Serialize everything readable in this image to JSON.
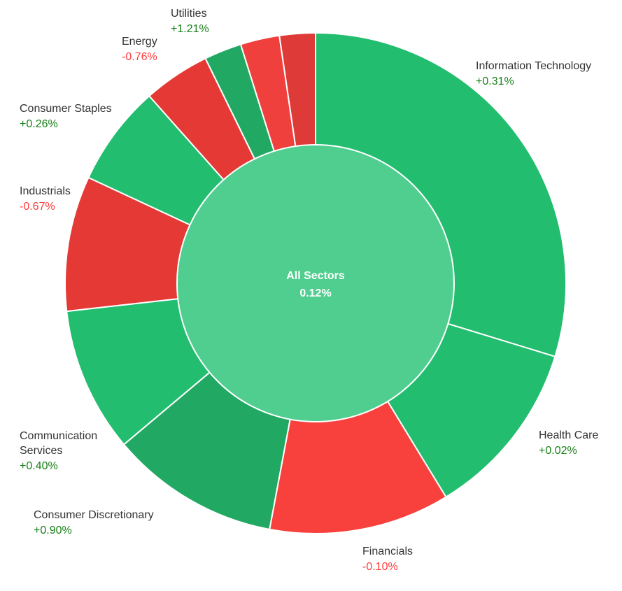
{
  "chart_data": {
    "type": "pie",
    "center": {
      "name": "All Sectors",
      "change": "0.12%"
    },
    "positive_colors": [
      "#22bd6f",
      "#22bd6f",
      "#21a963",
      "#22bd6f",
      "#22bd6f",
      "#21a963"
    ],
    "negative_colors": [
      "#f8403c",
      "#e53935",
      "#e53935",
      "#e53935",
      "#ef403d",
      "#de3b38"
    ],
    "center_color": "#50ce8f",
    "label_colors": {
      "name": "#333333",
      "positive": "#188118",
      "negative": "#ff3b3b"
    },
    "series": [
      {
        "name": "Information Technology",
        "change": "+0.31%",
        "share": 28.3,
        "color": "#22bd6f"
      },
      {
        "name": "Health Care",
        "change": "+0.02%",
        "share": 11.0,
        "color": "#22bd6f"
      },
      {
        "name": "Financials",
        "change": "-0.10%",
        "share": 11.1,
        "color": "#f8403c"
      },
      {
        "name": "Consumer Discretionary",
        "change": "+0.90%",
        "share": 10.4,
        "color": "#21a963"
      },
      {
        "name": "Communication Services",
        "change": "+0.40%",
        "share": 8.9,
        "color": "#22bd6f"
      },
      {
        "name": "Industrials",
        "change": "-0.67%",
        "share": 8.3,
        "color": "#e53935"
      },
      {
        "name": "Consumer Staples",
        "change": "+0.26%",
        "share": 6.2,
        "color": "#22bd6f"
      },
      {
        "name": "Energy",
        "change": "-0.76%",
        "share": 4.1,
        "color": "#e53935"
      },
      {
        "name": "Utilities",
        "change": "+1.21%",
        "share": 2.3,
        "color": "#21a963"
      },
      {
        "name": "",
        "change": "",
        "share": 2.4,
        "color": "#ef403d"
      },
      {
        "name": "",
        "change": "",
        "share": 2.2,
        "color": "#de3b38"
      }
    ]
  }
}
